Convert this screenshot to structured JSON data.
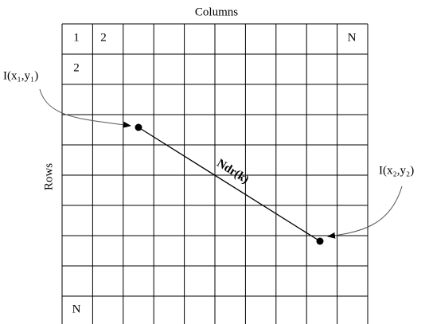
{
  "header": {
    "title": "Columns",
    "row_axis_label": "Rows"
  },
  "grid": {
    "column_headers": [
      "1",
      "2",
      "N"
    ],
    "row_headers": [
      "2",
      "N"
    ]
  },
  "points": [
    {
      "label": "I(x₁,y₁)"
    },
    {
      "label": "I(x₂,y₂)"
    }
  ],
  "connection": {
    "label": "Ndr(k)"
  }
}
